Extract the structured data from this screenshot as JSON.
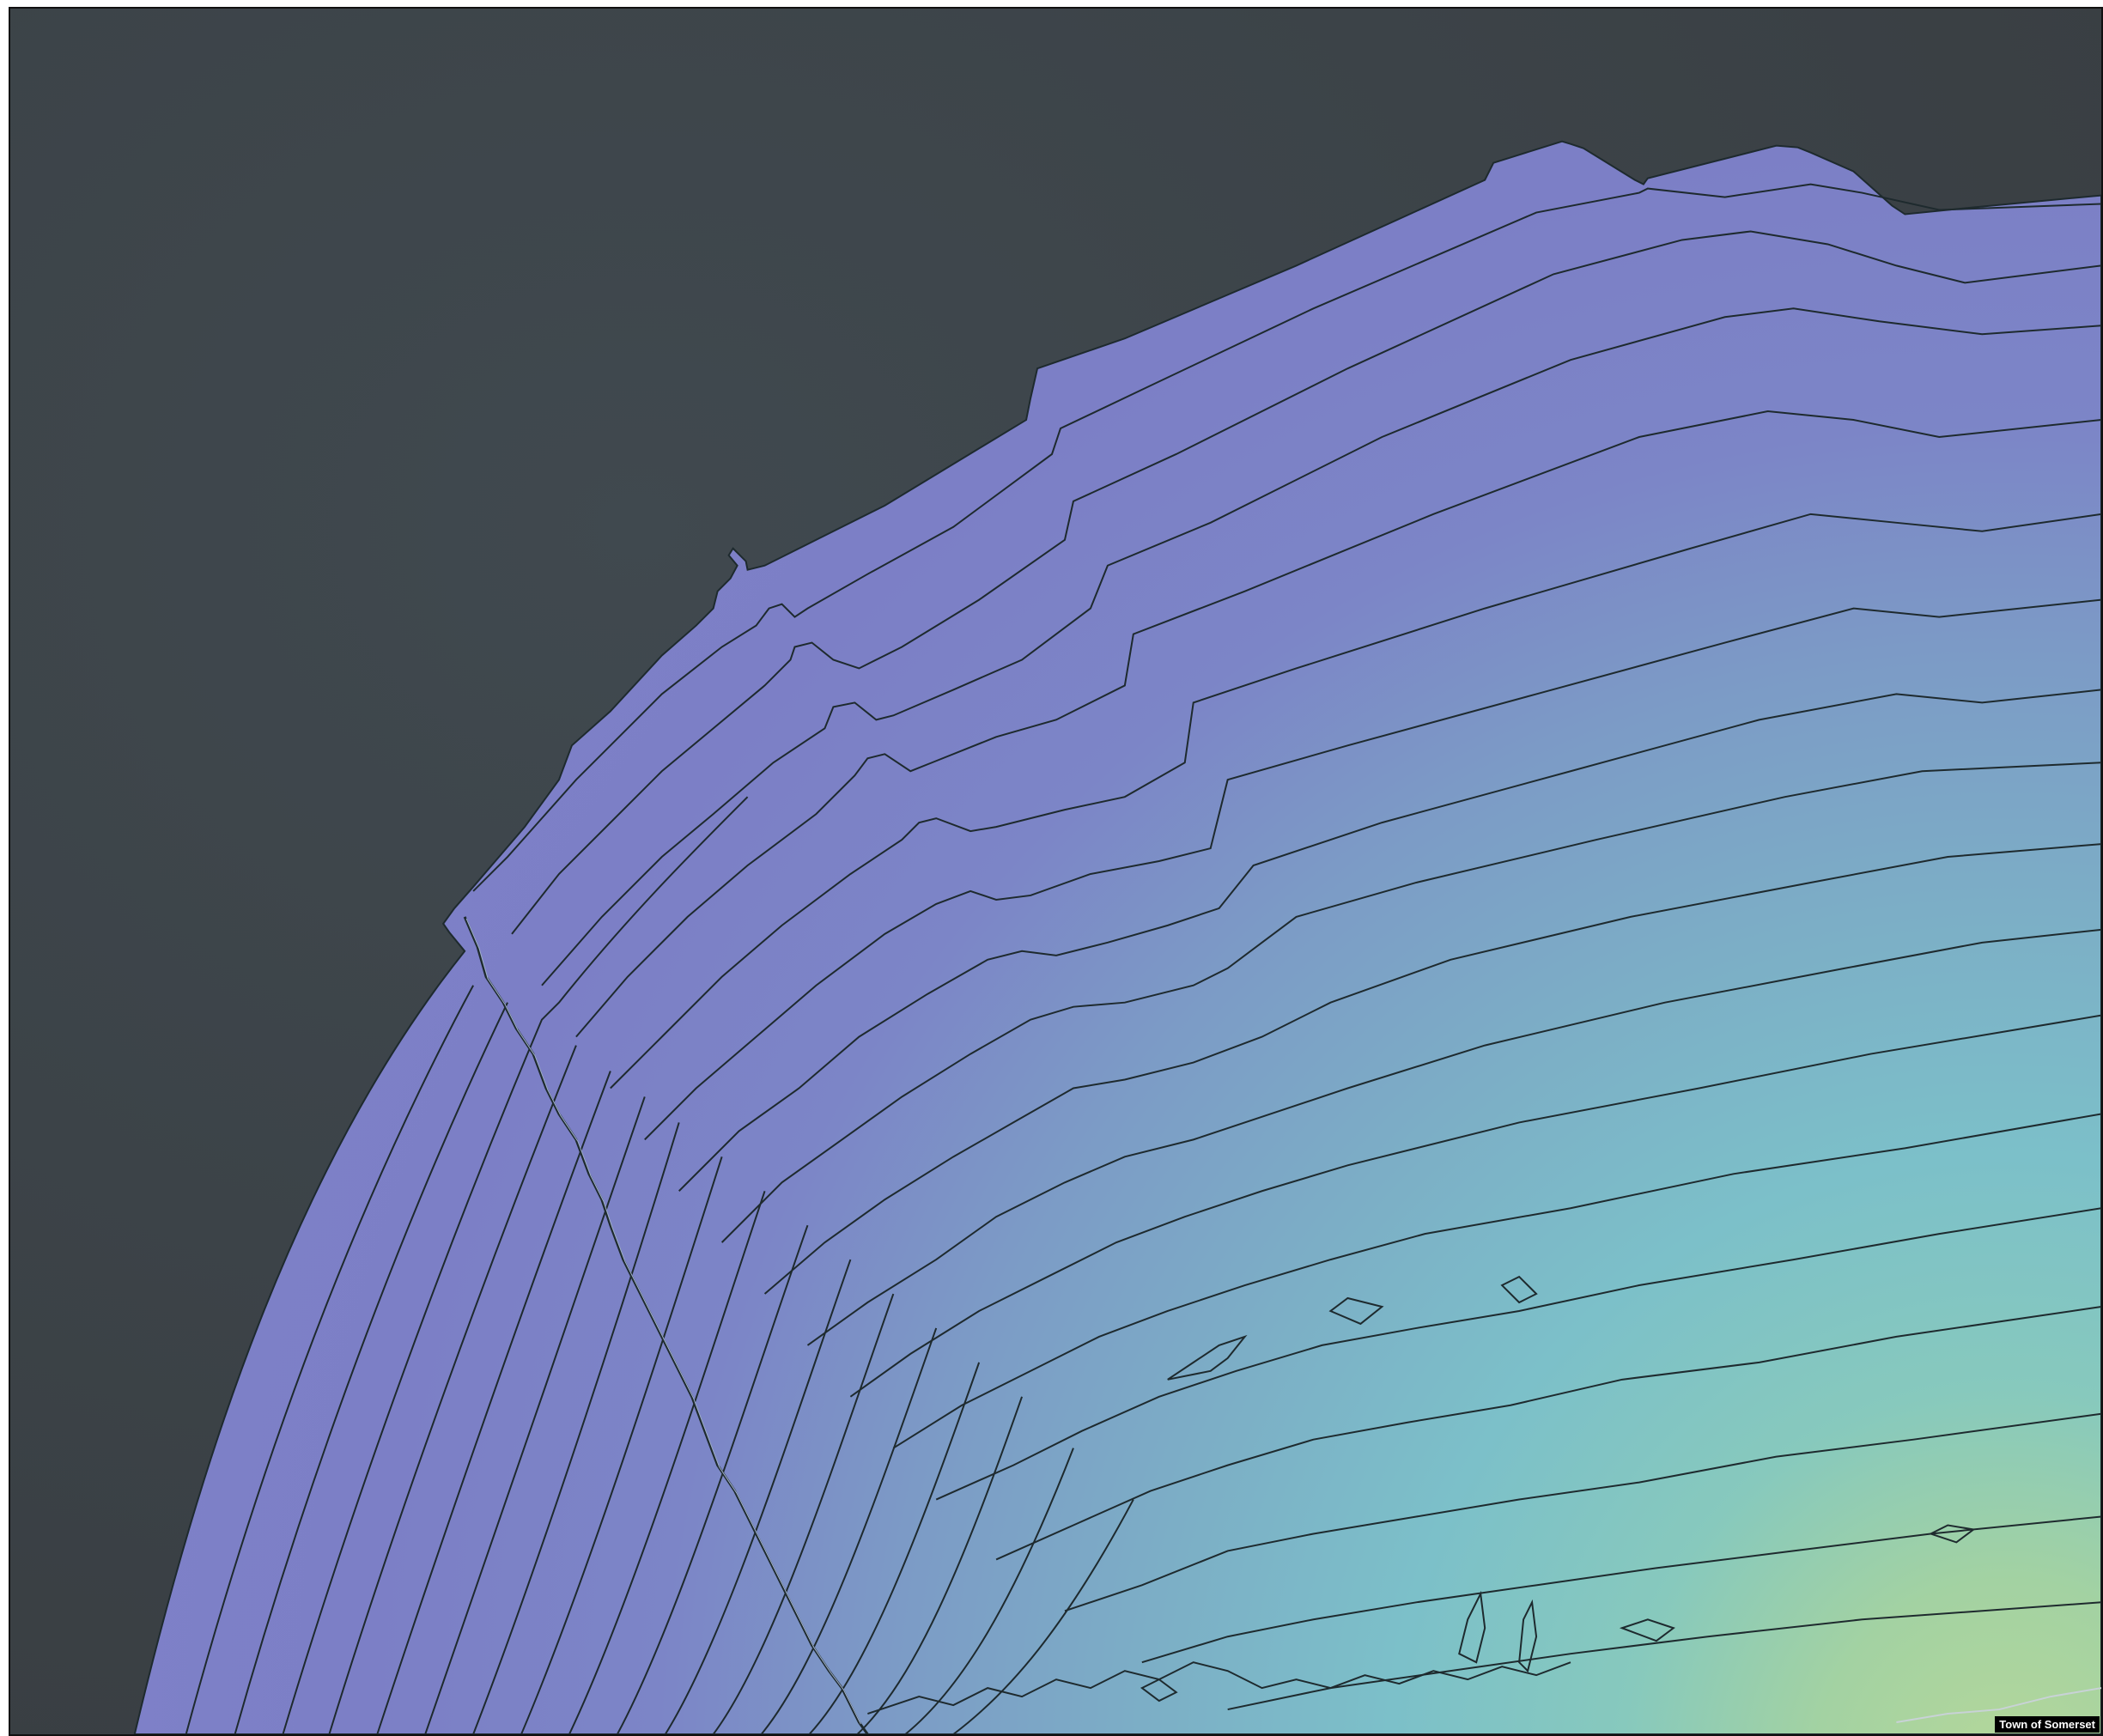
{
  "map": {
    "attribution": "Town of Somerset",
    "colors": {
      "background": "#3a3f43",
      "outer_band": "#7c7fc6",
      "mid_band": "#7c9ec4",
      "teal_band": "#7ec4c4",
      "inner_band": "#a6d3a0",
      "contour_stroke": "#1e2a2e"
    },
    "legend": [],
    "layers": [
      "contour-bands",
      "contour-lines",
      "boundary-line"
    ]
  }
}
